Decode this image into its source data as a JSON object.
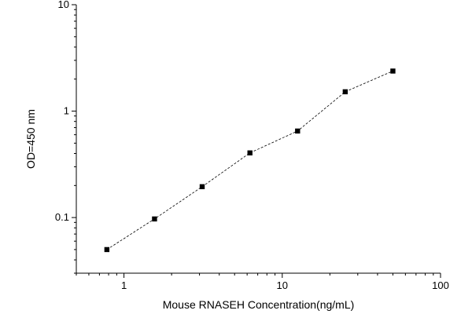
{
  "chart_data": {
    "type": "scatter",
    "title": "",
    "xlabel": "Mouse RNASEH Concentration(ng/mL)",
    "ylabel": "OD=450 nm",
    "x_scale": "log",
    "y_scale": "log",
    "xlim": [
      0.5,
      100
    ],
    "ylim": [
      0.03,
      10
    ],
    "x_ticks": [
      {
        "value": 1,
        "label": "1"
      },
      {
        "value": 10,
        "label": "10"
      },
      {
        "value": 100,
        "label": "100"
      }
    ],
    "y_ticks": [
      {
        "value": 0.1,
        "label": "0.1"
      },
      {
        "value": 1,
        "label": "1"
      },
      {
        "value": 10,
        "label": "10"
      }
    ],
    "grid": false,
    "line_style": "dashed",
    "marker": "square",
    "colors": {
      "series": "#000000",
      "axis": "#000000"
    },
    "series": [
      {
        "x": [
          0.78,
          1.56,
          3.12,
          6.25,
          12.5,
          25,
          50
        ],
        "y": [
          0.05,
          0.097,
          0.195,
          0.405,
          0.65,
          1.52,
          2.38
        ]
      }
    ]
  }
}
